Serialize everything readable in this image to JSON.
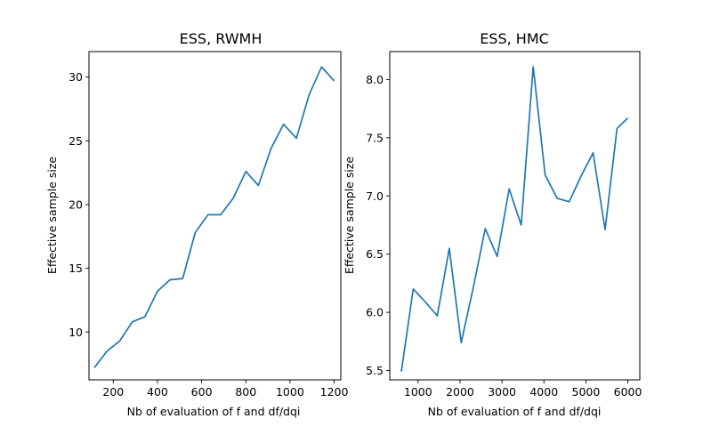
{
  "chart_data": [
    {
      "type": "line",
      "title": "ESS, RWMH",
      "xlabel": "Nb of evaluation of f and df/dqi",
      "ylabel": "Effective sample size",
      "xlim": [
        90,
        1230
      ],
      "ylim": [
        6.25,
        32
      ],
      "xticks": [
        200,
        400,
        600,
        800,
        1000,
        1200
      ],
      "yticks": [
        10,
        15,
        20,
        25,
        30
      ],
      "xtick_labels": [
        "200",
        "400",
        "600",
        "800",
        "1000",
        "1200"
      ],
      "ytick_labels": [
        "10",
        "15",
        "20",
        "25",
        "30"
      ],
      "color": "#1f77b4",
      "grid": false,
      "x": [
        114,
        171,
        229,
        286,
        343,
        400,
        457,
        514,
        571,
        629,
        686,
        743,
        800,
        857,
        914,
        971,
        1029,
        1086,
        1143,
        1200
      ],
      "y": [
        7.2,
        8.5,
        9.3,
        10.8,
        11.2,
        13.2,
        14.1,
        14.2,
        17.8,
        19.2,
        19.2,
        20.5,
        22.6,
        21.5,
        24.4,
        26.3,
        25.2,
        28.6,
        30.8,
        29.7
      ]
    },
    {
      "type": "line",
      "title": "ESS, HMC",
      "xlabel": "Nb of evaluation of f and df/dqi",
      "ylabel": "Effective sample size",
      "xlim": [
        325,
        6285
      ],
      "ylim": [
        5.42,
        8.24
      ],
      "xticks": [
        1000,
        2000,
        3000,
        4000,
        5000,
        6000
      ],
      "yticks": [
        5.5,
        6.0,
        6.5,
        7.0,
        7.5,
        8.0
      ],
      "xtick_labels": [
        "1000",
        "2000",
        "3000",
        "4000",
        "5000",
        "6000"
      ],
      "ytick_labels": [
        "5.5",
        "6.0",
        "6.5",
        "7.0",
        "7.5",
        "8.0"
      ],
      "color": "#1f77b4",
      "grid": false,
      "x": [
        600,
        886,
        1171,
        1457,
        1743,
        2029,
        2314,
        2600,
        2886,
        3171,
        3457,
        3743,
        4029,
        4314,
        4600,
        4886,
        5171,
        5457,
        5743,
        6000
      ],
      "y": [
        5.49,
        6.2,
        6.09,
        5.97,
        6.55,
        5.74,
        6.21,
        6.72,
        6.48,
        7.06,
        6.75,
        8.11,
        7.18,
        6.98,
        6.95,
        7.17,
        7.37,
        6.71,
        7.58,
        7.67
      ]
    }
  ]
}
